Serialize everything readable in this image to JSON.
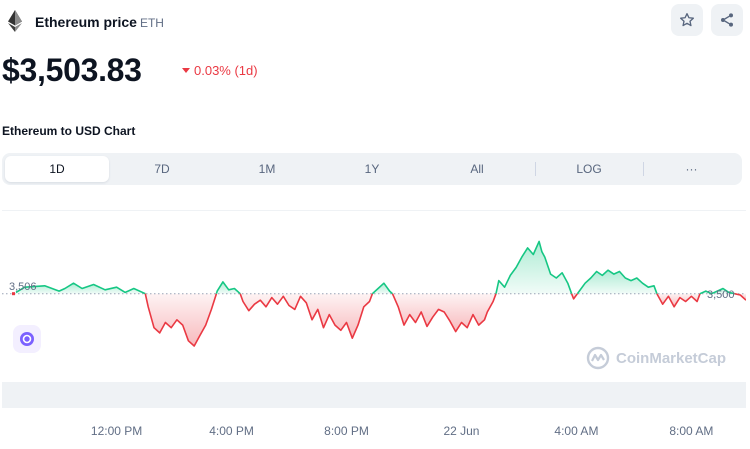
{
  "header": {
    "title": "Ethereum price",
    "symbol": "ETH",
    "logo_icon": "ethereum-icon",
    "watchlist_icon": "star-icon",
    "share_icon": "share-icon"
  },
  "price": {
    "value": "$3,503.83",
    "change": "0.03% (1d)",
    "direction": "down"
  },
  "chart_title": "Ethereum to USD Chart",
  "tabs": [
    {
      "label": "1D",
      "active": true
    },
    {
      "label": "7D",
      "active": false
    },
    {
      "label": "1M",
      "active": false
    },
    {
      "label": "1Y",
      "active": false
    },
    {
      "label": "All",
      "active": false
    },
    {
      "label": "LOG",
      "active": false
    },
    {
      "label": "···",
      "active": false
    }
  ],
  "watermark": "CoinMarketCap",
  "colors": {
    "up": "#16c784",
    "down": "#ea3943",
    "brand_purple": "#7b61ff"
  },
  "chart_data": {
    "type": "area",
    "baseline": 3506,
    "baseline_label": "3,506",
    "last_label": "3,500",
    "ylim": [
      3440,
      3570
    ],
    "x_tick_labels": [
      "12:00 PM",
      "4:00 PM",
      "8:00 PM",
      "22 Jun",
      "4:00 AM",
      "8:00 AM"
    ],
    "x_tick_hours": [
      2,
      6,
      10,
      14,
      18,
      22
    ],
    "x_range_hours": [
      -1.5,
      23.9
    ],
    "series": [
      {
        "points": [
          [
            -1.5,
            3507
          ],
          [
            -1.2,
            3511
          ],
          [
            -0.5,
            3512
          ],
          [
            0,
            3508
          ],
          [
            0.2,
            3510
          ],
          [
            0.5,
            3514
          ],
          [
            0.8,
            3510
          ],
          [
            1.2,
            3513
          ],
          [
            1.6,
            3509
          ],
          [
            2.0,
            3511
          ],
          [
            2.3,
            3507
          ],
          [
            2.6,
            3510
          ],
          [
            3.0,
            3506
          ],
          [
            3.1,
            3496
          ],
          [
            3.3,
            3480
          ],
          [
            3.5,
            3476
          ],
          [
            3.7,
            3484
          ],
          [
            3.9,
            3480
          ],
          [
            4.1,
            3486
          ],
          [
            4.3,
            3482
          ],
          [
            4.5,
            3470
          ],
          [
            4.7,
            3466
          ],
          [
            4.9,
            3474
          ],
          [
            5.1,
            3482
          ],
          [
            5.3,
            3494
          ],
          [
            5.5,
            3508
          ],
          [
            5.7,
            3515
          ],
          [
            5.9,
            3509
          ],
          [
            6.1,
            3510
          ],
          [
            6.3,
            3506
          ],
          [
            6.4,
            3500
          ],
          [
            6.6,
            3493
          ],
          [
            6.8,
            3498
          ],
          [
            7.0,
            3501
          ],
          [
            7.2,
            3496
          ],
          [
            7.4,
            3503
          ],
          [
            7.6,
            3498
          ],
          [
            7.8,
            3504
          ],
          [
            8.0,
            3497
          ],
          [
            8.2,
            3494
          ],
          [
            8.4,
            3504
          ],
          [
            8.6,
            3499
          ],
          [
            8.8,
            3486
          ],
          [
            9.0,
            3494
          ],
          [
            9.2,
            3480
          ],
          [
            9.4,
            3490
          ],
          [
            9.6,
            3482
          ],
          [
            9.8,
            3478
          ],
          [
            10.0,
            3484
          ],
          [
            10.2,
            3472
          ],
          [
            10.4,
            3482
          ],
          [
            10.6,
            3496
          ],
          [
            10.8,
            3500
          ],
          [
            10.9,
            3506
          ],
          [
            11.1,
            3510
          ],
          [
            11.3,
            3514
          ],
          [
            11.5,
            3508
          ],
          [
            11.6,
            3506
          ],
          [
            11.8,
            3496
          ],
          [
            12.0,
            3482
          ],
          [
            12.2,
            3490
          ],
          [
            12.4,
            3484
          ],
          [
            12.6,
            3492
          ],
          [
            12.8,
            3481
          ],
          [
            13.0,
            3488
          ],
          [
            13.2,
            3494
          ],
          [
            13.4,
            3492
          ],
          [
            13.6,
            3485
          ],
          [
            13.8,
            3477
          ],
          [
            14.0,
            3484
          ],
          [
            14.2,
            3480
          ],
          [
            14.4,
            3490
          ],
          [
            14.6,
            3482
          ],
          [
            14.8,
            3486
          ],
          [
            14.9,
            3492
          ],
          [
            15.1,
            3500
          ],
          [
            15.2,
            3506
          ],
          [
            15.3,
            3516
          ],
          [
            15.5,
            3511
          ],
          [
            15.7,
            3520
          ],
          [
            15.9,
            3526
          ],
          [
            16.1,
            3534
          ],
          [
            16.3,
            3541
          ],
          [
            16.5,
            3536
          ],
          [
            16.7,
            3546
          ],
          [
            16.8,
            3538
          ],
          [
            16.9,
            3534
          ],
          [
            17.1,
            3521
          ],
          [
            17.3,
            3518
          ],
          [
            17.5,
            3522
          ],
          [
            17.7,
            3514
          ],
          [
            17.9,
            3502
          ],
          [
            18.1,
            3508
          ],
          [
            18.3,
            3514
          ],
          [
            18.5,
            3518
          ],
          [
            18.7,
            3523
          ],
          [
            18.9,
            3520
          ],
          [
            19.1,
            3524
          ],
          [
            19.3,
            3521
          ],
          [
            19.5,
            3523
          ],
          [
            19.7,
            3518
          ],
          [
            19.9,
            3516
          ],
          [
            20.1,
            3518
          ],
          [
            20.3,
            3514
          ],
          [
            20.5,
            3511
          ],
          [
            20.7,
            3512
          ],
          [
            20.8,
            3506
          ],
          [
            21.0,
            3498
          ],
          [
            21.2,
            3504
          ],
          [
            21.4,
            3496
          ],
          [
            21.6,
            3503
          ],
          [
            21.8,
            3500
          ],
          [
            22.0,
            3504
          ],
          [
            22.2,
            3500
          ],
          [
            22.3,
            3506
          ],
          [
            22.5,
            3508
          ],
          [
            22.7,
            3506
          ],
          [
            22.9,
            3508
          ],
          [
            23.1,
            3510
          ],
          [
            23.3,
            3507
          ],
          [
            23.5,
            3506
          ],
          [
            23.7,
            3505
          ],
          [
            23.9,
            3501
          ]
        ]
      }
    ]
  }
}
